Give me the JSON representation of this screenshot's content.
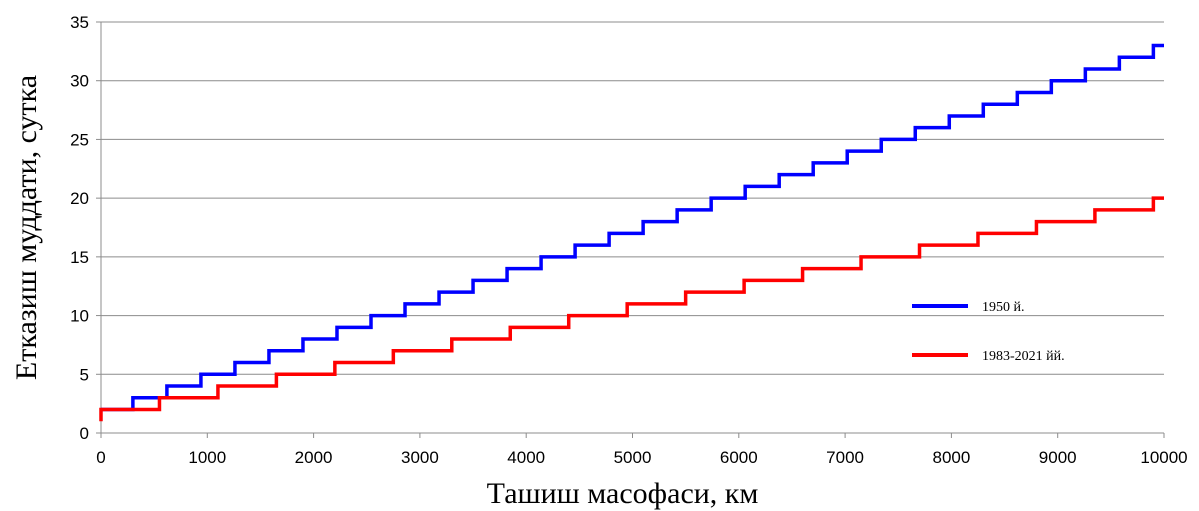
{
  "chart_data": {
    "type": "line",
    "title": "",
    "xlabel": "Ташиш масофаси, км",
    "ylabel": "Етказиш муддати, сутка",
    "xlim": [
      0,
      10000
    ],
    "ylim": [
      0,
      35
    ],
    "xticks": [
      0,
      1000,
      2000,
      3000,
      4000,
      5000,
      6000,
      7000,
      8000,
      9000,
      10000
    ],
    "yticks": [
      0,
      5,
      10,
      15,
      20,
      25,
      30,
      35
    ],
    "grid": "horizontal",
    "legend_position": "right",
    "series": [
      {
        "name": "1950 й.",
        "color": "#0000ff",
        "step": "pre",
        "x": [
          0,
          300,
          620,
          940,
          1260,
          1580,
          1900,
          2220,
          2540,
          2860,
          3180,
          3500,
          3820,
          4140,
          4460,
          4780,
          5100,
          5420,
          5740,
          6060,
          6380,
          6700,
          7020,
          7340,
          7660,
          7980,
          8300,
          8620,
          8940,
          9260,
          9580,
          9900,
          10000
        ],
        "y": [
          2,
          3,
          4,
          5,
          6,
          7,
          8,
          9,
          10,
          11,
          12,
          13,
          14,
          15,
          16,
          17,
          18,
          19,
          20,
          21,
          22,
          23,
          24,
          25,
          26,
          27,
          28,
          29,
          30,
          31,
          32,
          33,
          33
        ]
      },
      {
        "name": "1983-2021 йй.",
        "color": "#ff0000",
        "step": "pre",
        "x": [
          0,
          550,
          1100,
          1650,
          2200,
          2750,
          3300,
          3850,
          4400,
          4950,
          5500,
          6050,
          6600,
          7150,
          7700,
          8250,
          8800,
          9350,
          9900,
          10000
        ],
        "y": [
          2,
          3,
          4,
          5,
          6,
          7,
          8,
          9,
          10,
          11,
          12,
          13,
          14,
          15,
          16,
          17,
          18,
          19,
          20,
          20
        ]
      }
    ]
  }
}
